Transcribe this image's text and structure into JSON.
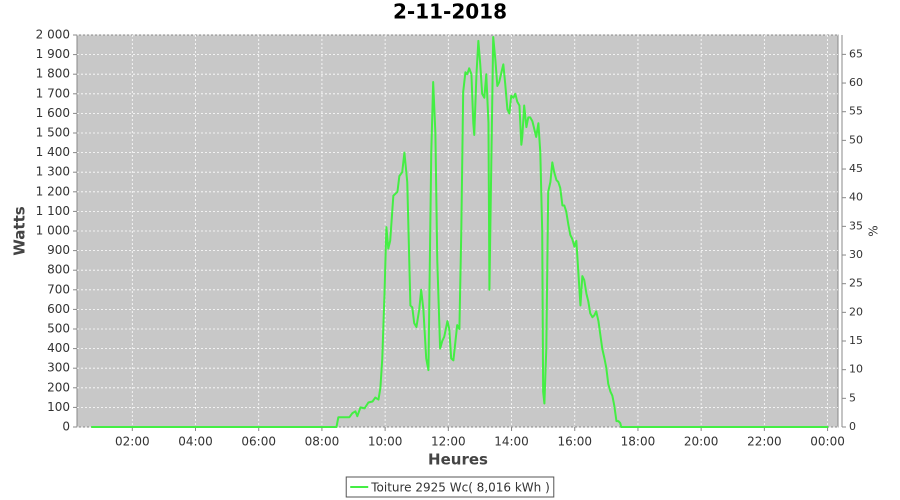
{
  "chart_data": {
    "type": "line",
    "title": "2-11-2018",
    "x_label": "Heures",
    "y_label": "Watts",
    "y2_label": "%",
    "x": [
      0.7,
      8.46,
      8.52,
      8.87,
      8.96,
      9.06,
      9.12,
      9.22,
      9.35,
      9.47,
      9.6,
      9.69,
      9.79,
      9.85,
      9.91,
      9.98,
      10.04,
      10.1,
      10.16,
      10.26,
      10.39,
      10.45,
      10.54,
      10.61,
      10.7,
      10.8,
      10.86,
      10.92,
      10.99,
      11.08,
      11.14,
      11.21,
      11.3,
      11.37,
      11.46,
      11.52,
      11.59,
      11.65,
      11.74,
      11.81,
      11.87,
      11.97,
      12.03,
      12.09,
      12.16,
      12.22,
      12.28,
      12.35,
      12.41,
      12.47,
      12.54,
      12.6,
      12.66,
      12.73,
      12.79,
      12.82,
      12.89,
      12.95,
      13.01,
      13.07,
      13.14,
      13.2,
      13.27,
      13.3,
      13.36,
      13.42,
      13.49,
      13.55,
      13.61,
      13.68,
      13.74,
      13.8,
      13.87,
      13.93,
      13.99,
      14.06,
      14.12,
      14.18,
      14.25,
      14.31,
      14.34,
      14.4,
      14.47,
      14.53,
      14.59,
      14.66,
      14.72,
      14.78,
      14.85,
      14.91,
      14.97,
      15.0,
      15.04,
      15.1,
      15.16,
      15.23,
      15.29,
      15.35,
      15.42,
      15.48,
      15.54,
      15.61,
      15.67,
      15.73,
      15.8,
      15.86,
      15.92,
      15.99,
      16.05,
      16.11,
      16.18,
      16.24,
      16.3,
      16.37,
      16.43,
      16.49,
      16.56,
      16.62,
      16.68,
      16.75,
      16.81,
      16.87,
      16.94,
      17.0,
      17.06,
      17.13,
      17.19,
      17.25,
      17.32,
      17.38,
      17.44,
      17.47,
      24.02
    ],
    "series": [
      {
        "name": "Toiture 2925 Wc( 8,016 kWh )",
        "color": "#44ee44",
        "values": [
          0,
          0,
          50,
          50,
          70,
          80,
          55,
          100,
          95,
          125,
          130,
          150,
          140,
          200,
          350,
          680,
          1020,
          910,
          950,
          1180,
          1200,
          1280,
          1300,
          1400,
          1250,
          620,
          610,
          530,
          510,
          600,
          700,
          600,
          350,
          290,
          1400,
          1760,
          1500,
          850,
          400,
          440,
          460,
          540,
          500,
          350,
          340,
          430,
          520,
          500,
          1000,
          1710,
          1810,
          1800,
          1830,
          1800,
          1550,
          1490,
          1800,
          1970,
          1850,
          1700,
          1680,
          1800,
          1550,
          700,
          1350,
          1990,
          1870,
          1740,
          1760,
          1810,
          1850,
          1750,
          1620,
          1600,
          1690,
          1680,
          1700,
          1660,
          1640,
          1440,
          1480,
          1640,
          1530,
          1580,
          1580,
          1560,
          1520,
          1480,
          1550,
          1400,
          1000,
          180,
          120,
          400,
          1200,
          1250,
          1350,
          1300,
          1260,
          1250,
          1220,
          1130,
          1130,
          1100,
          1030,
          980,
          960,
          920,
          950,
          800,
          620,
          770,
          750,
          680,
          640,
          580,
          560,
          570,
          590,
          540,
          470,
          400,
          350,
          300,
          220,
          180,
          160,
          110,
          30,
          30,
          20,
          0,
          0
        ]
      }
    ],
    "xlim": [
      0.25,
      24.33
    ],
    "xticks": [
      {
        "value": 2,
        "label": "02:00"
      },
      {
        "value": 4,
        "label": "04:00"
      },
      {
        "value": 6,
        "label": "06:00"
      },
      {
        "value": 8,
        "label": "08:00"
      },
      {
        "value": 10,
        "label": "10:00"
      },
      {
        "value": 12,
        "label": "12:00"
      },
      {
        "value": 14,
        "label": "14:00"
      },
      {
        "value": 16,
        "label": "16:00"
      },
      {
        "value": 18,
        "label": "18:00"
      },
      {
        "value": 20,
        "label": "20:00"
      },
      {
        "value": 22,
        "label": "22:00"
      },
      {
        "value": 24,
        "label": "00:00"
      }
    ],
    "ylim": [
      0,
      2000
    ],
    "yticks": [
      0,
      100,
      200,
      300,
      400,
      500,
      600,
      700,
      800,
      900,
      {
        "value": 1000,
        "label": "1 000"
      },
      {
        "value": 1100,
        "label": "1 100"
      },
      {
        "value": 1200,
        "label": "1 200"
      },
      {
        "value": 1300,
        "label": "1 300"
      },
      {
        "value": 1400,
        "label": "1 400"
      },
      {
        "value": 1500,
        "label": "1 500"
      },
      {
        "value": 1600,
        "label": "1 600"
      },
      {
        "value": 1700,
        "label": "1 700"
      },
      {
        "value": 1800,
        "label": "1 800"
      },
      {
        "value": 1900,
        "label": "1 900"
      },
      {
        "value": 2000,
        "label": "2 000"
      }
    ],
    "y2lim": [
      0,
      68.38
    ],
    "y2ticks": [
      0,
      5,
      10,
      15,
      20,
      25,
      30,
      35,
      40,
      45,
      50,
      55,
      60,
      65
    ],
    "grid": true,
    "legend": "bottom",
    "background": "#c8c8c8"
  }
}
